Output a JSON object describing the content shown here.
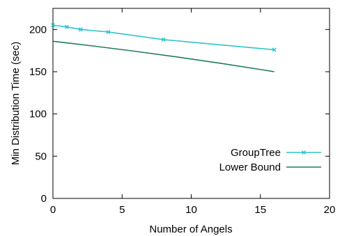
{
  "chart_data": {
    "type": "line",
    "title": "",
    "xlabel": "Number of Angels",
    "ylabel": "Min Distribution Time (sec)",
    "xlim": [
      0,
      20
    ],
    "ylim": [
      0,
      225
    ],
    "xticks": [
      0,
      5,
      10,
      15,
      20
    ],
    "yticks": [
      0,
      50,
      100,
      150,
      200
    ],
    "grid": false,
    "legend_position": "right",
    "series": [
      {
        "name": "GroupTree",
        "color": "#2ec4c8",
        "marker": "x",
        "x": [
          0,
          1,
          2,
          4,
          8,
          16
        ],
        "y": [
          205,
          203,
          200,
          197,
          188,
          176
        ]
      },
      {
        "name": "Lower Bound",
        "color": "#1f7a5a",
        "marker": "none",
        "x": [
          0,
          16
        ],
        "y": [
          186,
          150
        ],
        "curve": "concave"
      }
    ]
  }
}
